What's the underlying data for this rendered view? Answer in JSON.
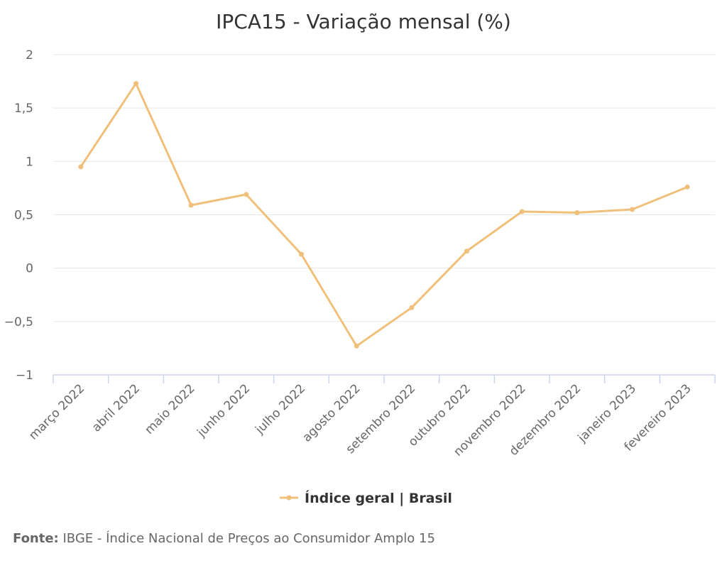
{
  "chart_data": {
    "type": "line",
    "title": "IPCA15 - Variação mensal (%)",
    "xlabel": "",
    "ylabel": "",
    "categories": [
      "março 2022",
      "abril 2022",
      "maio 2022",
      "junho 2022",
      "julho 2022",
      "agosto 2022",
      "setembro 2022",
      "outubro 2022",
      "novembro 2022",
      "dezembro 2022",
      "janeiro 2023",
      "fevereiro 2023"
    ],
    "series": [
      {
        "name": "Índice geral | Brasil",
        "values": [
          0.95,
          1.73,
          0.59,
          0.69,
          0.13,
          -0.73,
          -0.37,
          0.16,
          0.53,
          0.52,
          0.55,
          0.76
        ],
        "color": "#f0c07a"
      }
    ],
    "ylim": [
      -1,
      2
    ],
    "yticks": [
      2,
      1.5,
      1,
      0.5,
      0,
      -0.5,
      -1
    ],
    "ytick_labels": [
      "2",
      "1,5",
      "1",
      "0,5",
      "0",
      "−0,5",
      "−1"
    ],
    "grid": true,
    "legend_position": "bottom-center"
  },
  "source": {
    "label": "Fonte:",
    "text": "IBGE - Índice Nacional de Preços ao Consumidor Amplo 15"
  },
  "colors": {
    "series": "#f0c07a",
    "grid": "#e6e6e6",
    "axis": "#ccd6eb"
  }
}
